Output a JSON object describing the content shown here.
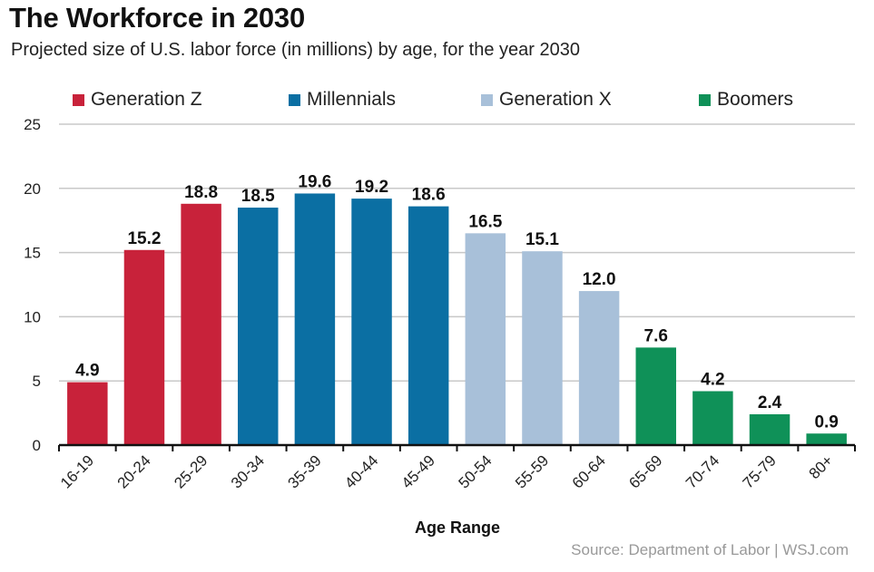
{
  "chart_data": {
    "type": "bar",
    "title": "The Workforce in 2030",
    "subtitle": "Projected size of U.S. labor force (in millions) by age, for the year 2030",
    "xlabel": "Age Range",
    "ylabel": "",
    "ylim": [
      0,
      25
    ],
    "yticks": [
      0,
      5,
      10,
      15,
      20,
      25
    ],
    "grid": true,
    "legend_position": "top",
    "categories": [
      "16-19",
      "20-24",
      "25-29",
      "30-34",
      "35-39",
      "40-44",
      "45-49",
      "50-54",
      "55-59",
      "60-64",
      "65-69",
      "70-74",
      "75-79",
      "80+"
    ],
    "values": [
      4.9,
      15.2,
      18.8,
      18.5,
      19.6,
      19.2,
      18.6,
      16.5,
      15.1,
      12.0,
      7.6,
      4.2,
      2.4,
      0.9
    ],
    "value_labels": [
      "4.9",
      "15.2",
      "18.8",
      "18.5",
      "19.6",
      "19.2",
      "18.6",
      "16.5",
      "15.1",
      "12.0",
      "7.6",
      "4.2",
      "2.4",
      "0.9"
    ],
    "groups": [
      "Generation Z",
      "Generation Z",
      "Generation Z",
      "Millennials",
      "Millennials",
      "Millennials",
      "Millennials",
      "Generation X",
      "Generation X",
      "Generation X",
      "Boomers",
      "Boomers",
      "Boomers",
      "Boomers"
    ],
    "legend": [
      {
        "name": "Generation Z",
        "color": "#c8223a"
      },
      {
        "name": "Millennials",
        "color": "#0b6fa3"
      },
      {
        "name": "Generation X",
        "color": "#a8c0d9"
      },
      {
        "name": "Boomers",
        "color": "#0f9158"
      }
    ],
    "source": "Source: Department of Labor  |  WSJ.com"
  }
}
